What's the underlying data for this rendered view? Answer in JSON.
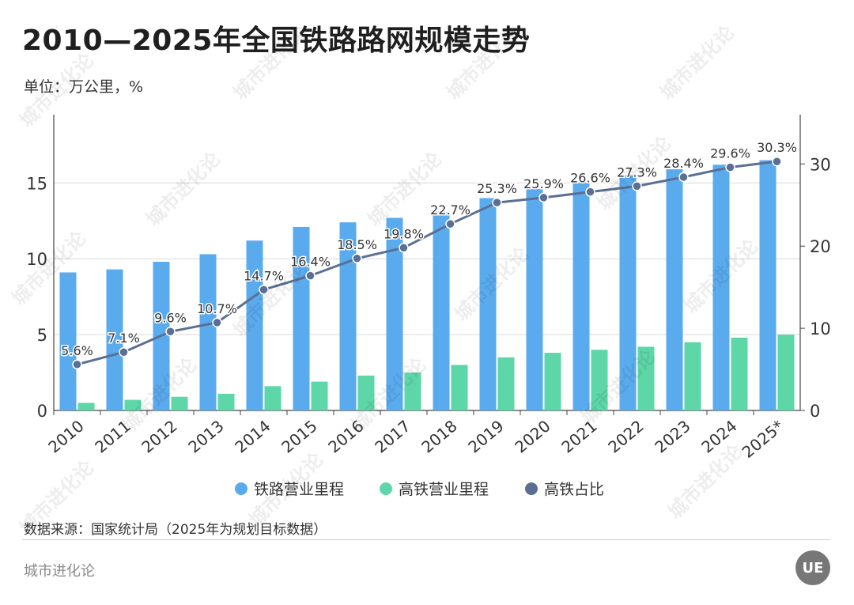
{
  "header": {
    "title": "2010—2025年全国铁路路网规模走势",
    "unit": "单位：万公里，%"
  },
  "footer": {
    "source": "数据来源：国家统计局（2025年为规划目标数据）",
    "brand": "城市进化论",
    "logo_text": "UE"
  },
  "watermark": "城市进化论",
  "colors": {
    "rail": "#5aabee",
    "hsr": "#5dd6a8",
    "share": "#5b6f94",
    "grid": "#d9d9d9",
    "axis": "#444444"
  },
  "chart_data": {
    "type": "bar",
    "categories": [
      "2010",
      "2011",
      "2012",
      "2013",
      "2014",
      "2015",
      "2016",
      "2017",
      "2018",
      "2019",
      "2020",
      "2021",
      "2022",
      "2023",
      "2024",
      "2025*"
    ],
    "series": [
      {
        "name": "铁路营业里程",
        "type": "bar",
        "axis": "left",
        "values": [
          9.1,
          9.3,
          9.8,
          10.3,
          11.2,
          12.1,
          12.4,
          12.7,
          13.1,
          14.0,
          14.6,
          15.0,
          15.5,
          15.9,
          16.2,
          16.5
        ]
      },
      {
        "name": "高铁营业里程",
        "type": "bar",
        "axis": "left",
        "values": [
          0.5,
          0.7,
          0.9,
          1.1,
          1.6,
          1.9,
          2.3,
          2.5,
          3.0,
          3.5,
          3.8,
          4.0,
          4.2,
          4.5,
          4.8,
          5.0
        ]
      },
      {
        "name": "高铁占比",
        "type": "line",
        "axis": "right",
        "values": [
          5.6,
          7.1,
          9.6,
          10.7,
          14.7,
          16.4,
          18.5,
          19.8,
          22.7,
          25.3,
          25.9,
          26.6,
          27.3,
          28.4,
          29.6,
          30.3
        ],
        "labels": [
          "5.6%",
          "7.1%",
          "9.6%",
          "10.7%",
          "14.7%",
          "16.4%",
          "18.5%",
          "19.8%",
          "22.7%",
          "25.3%",
          "25.9%",
          "26.6%",
          "27.3%",
          "28.4%",
          "29.6%",
          "30.3%"
        ]
      }
    ],
    "left_axis": {
      "ylim": [
        0,
        19.5
      ],
      "ticks": [
        "0",
        "5",
        "10",
        "15"
      ],
      "tick_values": [
        0,
        5,
        10,
        15
      ]
    },
    "right_axis": {
      "ylim": [
        0,
        36
      ],
      "ticks": [
        "0",
        "10",
        "20",
        "30"
      ],
      "tick_values": [
        0,
        10,
        20,
        30
      ]
    },
    "grid": true,
    "legend_position": "bottom"
  }
}
